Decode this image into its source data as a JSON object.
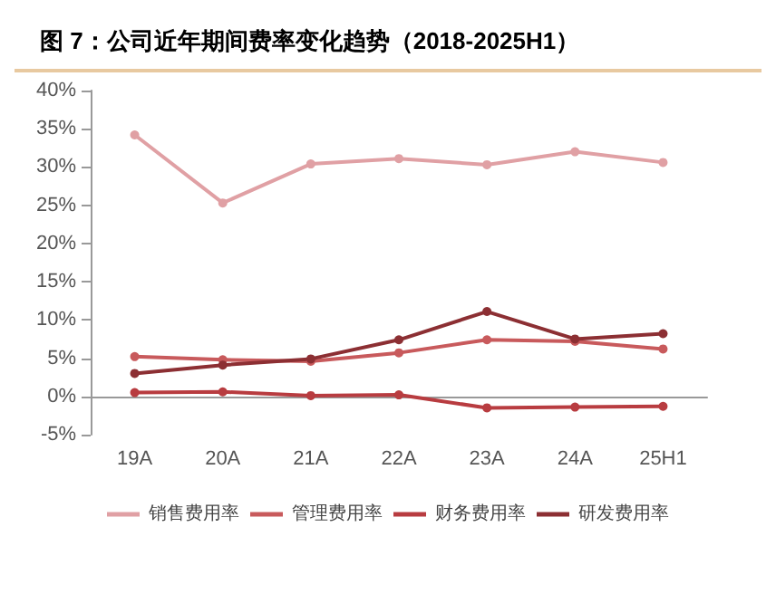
{
  "chart_data": {
    "type": "line",
    "title": "图 7：公司近年期间费率变化趋势（2018-2025H1）",
    "categories": [
      "19A",
      "20A",
      "21A",
      "22A",
      "23A",
      "24A",
      "25H1"
    ],
    "series": [
      {
        "name": "销售费用率",
        "color": "#e0a0a4",
        "values": [
          34.2,
          25.3,
          30.4,
          31.1,
          30.3,
          32.0,
          30.6
        ]
      },
      {
        "name": "管理费用率",
        "color": "#c85a5c",
        "values": [
          5.2,
          4.8,
          4.6,
          5.7,
          7.4,
          7.2,
          6.2
        ]
      },
      {
        "name": "财务费用率",
        "color": "#b83c40",
        "values": [
          0.5,
          0.6,
          0.1,
          0.2,
          -1.5,
          -1.4,
          -1.3
        ]
      },
      {
        "name": "研发费用率",
        "color": "#8c2f33",
        "values": [
          3.0,
          4.1,
          4.9,
          7.4,
          11.1,
          7.5,
          8.2
        ]
      }
    ],
    "ylim": [
      -5,
      40
    ],
    "yticks": [
      {
        "value": -5,
        "label": "-5%"
      },
      {
        "value": 0,
        "label": "0%"
      },
      {
        "value": 5,
        "label": "5%"
      },
      {
        "value": 10,
        "label": "10%"
      },
      {
        "value": 15,
        "label": "15%"
      },
      {
        "value": 20,
        "label": "20%"
      },
      {
        "value": 25,
        "label": "25%"
      },
      {
        "value": 30,
        "label": "30%"
      },
      {
        "value": 35,
        "label": "35%"
      },
      {
        "value": 40,
        "label": "40%"
      }
    ],
    "grid": false,
    "legend": "bottom",
    "marker": "circle",
    "line_style": "solid"
  }
}
